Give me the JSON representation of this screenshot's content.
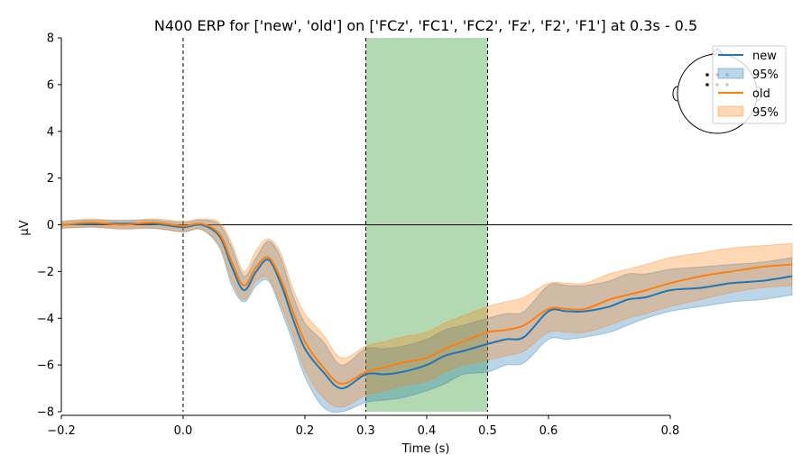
{
  "chart_data": {
    "type": "line",
    "title": "N400 ERP for ['new', 'old'] on ['FCz', 'FC1', 'FC2', 'Fz', 'F2', 'F1'] at 0.3s - 0.5",
    "xlabel": "Time (s)",
    "ylabel": "µV",
    "xlim": [
      -0.2,
      1.0
    ],
    "ylim": [
      -8,
      8
    ],
    "x_axis_spine_range": [
      -0.2,
      0.8
    ],
    "xticks": [
      -0.2,
      0.0,
      0.2,
      0.3,
      0.4,
      0.5,
      0.6,
      0.8
    ],
    "xtick_labels": [
      "−0.2",
      "0.0",
      "0.2",
      "0.3",
      "0.4",
      "0.5",
      "0.6",
      "0.8"
    ],
    "yticks": [
      8,
      6,
      4,
      2,
      0,
      -2,
      -4,
      -6,
      -8
    ],
    "ytick_labels": [
      "8",
      "6",
      "4",
      "2",
      "0",
      "−2",
      "−4",
      "−6",
      "−8"
    ],
    "zero_line": true,
    "grid": false,
    "highlight_window": {
      "start": 0.3,
      "end": 0.5,
      "color": "#b3d9b2"
    },
    "vlines": [
      0.0,
      0.3,
      0.5
    ],
    "legend_position": "top-right",
    "legend_entries": [
      "new",
      "95%",
      "old",
      "95%"
    ],
    "sensor_inset": "head outline with 6 sensor dots",
    "x": [
      -0.2,
      -0.15,
      -0.1,
      -0.05,
      0.0,
      0.03,
      0.06,
      0.08,
      0.1,
      0.12,
      0.14,
      0.16,
      0.18,
      0.2,
      0.23,
      0.26,
      0.3,
      0.33,
      0.36,
      0.4,
      0.43,
      0.46,
      0.5,
      0.53,
      0.56,
      0.6,
      0.63,
      0.66,
      0.7,
      0.73,
      0.76,
      0.8,
      0.85,
      0.9,
      0.95,
      1.0
    ],
    "series": [
      {
        "name": "new",
        "color": "#1f77b4",
        "band_color": "#1f77b4",
        "values": [
          0.0,
          0.05,
          0.05,
          0.05,
          -0.1,
          0.0,
          -0.5,
          -1.8,
          -2.8,
          -2.0,
          -1.5,
          -2.5,
          -4.0,
          -5.3,
          -6.3,
          -7.0,
          -6.4,
          -6.4,
          -6.3,
          -6.0,
          -5.6,
          -5.4,
          -5.1,
          -4.9,
          -4.8,
          -3.7,
          -3.7,
          -3.7,
          -3.5,
          -3.2,
          -3.1,
          -2.8,
          -2.7,
          -2.5,
          -2.4,
          -2.2
        ],
        "lower": [
          -0.15,
          -0.1,
          -0.15,
          -0.15,
          -0.3,
          -0.2,
          -1.0,
          -2.6,
          -3.3,
          -2.6,
          -2.4,
          -3.6,
          -5.0,
          -6.5,
          -7.8,
          -8.0,
          -7.6,
          -7.5,
          -7.4,
          -7.1,
          -6.8,
          -6.4,
          -6.3,
          -6.0,
          -5.9,
          -4.9,
          -4.9,
          -4.8,
          -4.6,
          -4.3,
          -4.0,
          -3.7,
          -3.5,
          -3.3,
          -3.2,
          -3.0
        ],
        "upper": [
          0.15,
          0.2,
          0.2,
          0.2,
          0.1,
          0.2,
          0.0,
          -1.0,
          -2.2,
          -1.4,
          -0.7,
          -1.4,
          -3.0,
          -4.2,
          -5.0,
          -6.0,
          -5.3,
          -5.3,
          -5.2,
          -4.9,
          -4.5,
          -4.3,
          -4.0,
          -3.8,
          -3.7,
          -2.6,
          -2.6,
          -2.6,
          -2.4,
          -2.1,
          -2.1,
          -1.9,
          -1.8,
          -1.7,
          -1.6,
          -1.4
        ]
      },
      {
        "name": "old",
        "color": "#ff7f0e",
        "band_color": "#ff7f0e",
        "values": [
          0.0,
          0.1,
          0.0,
          0.1,
          -0.05,
          0.05,
          -0.4,
          -1.6,
          -2.6,
          -1.8,
          -1.4,
          -2.3,
          -3.7,
          -5.0,
          -6.1,
          -6.8,
          -6.3,
          -6.1,
          -5.9,
          -5.7,
          -5.3,
          -5.0,
          -4.6,
          -4.5,
          -4.3,
          -3.6,
          -3.6,
          -3.6,
          -3.2,
          -3.0,
          -2.8,
          -2.5,
          -2.2,
          -2.0,
          -1.8,
          -1.7
        ],
        "lower": [
          -0.15,
          -0.1,
          -0.2,
          -0.15,
          -0.3,
          -0.2,
          -0.9,
          -2.4,
          -3.2,
          -2.4,
          -2.3,
          -3.4,
          -4.7,
          -6.2,
          -7.4,
          -7.8,
          -7.3,
          -7.1,
          -6.9,
          -6.7,
          -6.3,
          -6.0,
          -5.8,
          -5.6,
          -5.4,
          -4.6,
          -4.6,
          -4.6,
          -4.3,
          -4.0,
          -3.8,
          -3.5,
          -3.2,
          -2.9,
          -2.7,
          -2.6
        ],
        "upper": [
          0.15,
          0.25,
          0.15,
          0.25,
          0.15,
          0.25,
          0.1,
          -0.8,
          -2.0,
          -1.1,
          -0.6,
          -1.2,
          -2.7,
          -3.8,
          -4.7,
          -5.7,
          -5.2,
          -5.0,
          -4.8,
          -4.6,
          -4.2,
          -3.9,
          -3.5,
          -3.3,
          -3.1,
          -2.5,
          -2.5,
          -2.5,
          -2.1,
          -1.9,
          -1.7,
          -1.4,
          -1.2,
          -1.0,
          -0.9,
          -0.8
        ]
      }
    ]
  }
}
